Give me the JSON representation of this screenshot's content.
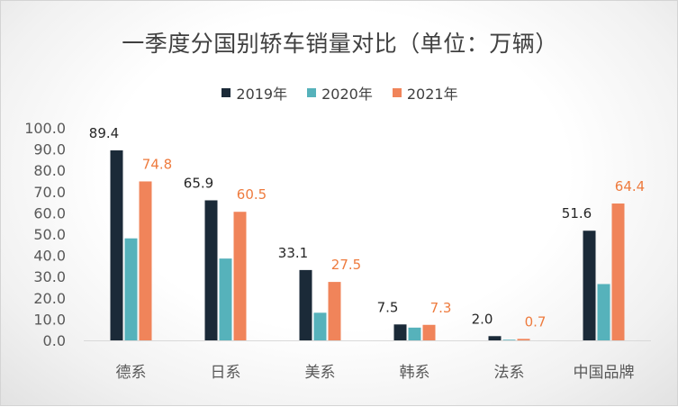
{
  "chart_data": {
    "type": "bar",
    "title": "一季度分国别轿车销量对比（单位：万辆）",
    "categories": [
      "德系",
      "日系",
      "美系",
      "韩系",
      "法系",
      "中国品牌"
    ],
    "series": [
      {
        "name": "2019年",
        "color": "#1b2a38",
        "values": [
          89.4,
          65.9,
          33.1,
          7.5,
          2.0,
          51.6
        ],
        "labels": [
          "89.4",
          "65.9",
          "33.1",
          "7.5",
          "2.0",
          "51.6"
        ],
        "label_color": "#262626"
      },
      {
        "name": "2020年",
        "color": "#56b2bb",
        "values": [
          48.0,
          38.5,
          13.0,
          6.0,
          0.3,
          26.5
        ],
        "labels": null,
        "label_color": null
      },
      {
        "name": "2021年",
        "color": "#f0845a",
        "values": [
          74.8,
          60.5,
          27.5,
          7.3,
          0.7,
          64.4
        ],
        "labels": [
          "74.8",
          "60.5",
          "27.5",
          "7.3",
          "0.7",
          "64.4"
        ],
        "label_color": "#ee7b3e"
      }
    ],
    "ylim": [
      0,
      100
    ],
    "yticks": [
      "0.0",
      "10.0",
      "20.0",
      "30.0",
      "40.0",
      "50.0",
      "60.0",
      "70.0",
      "80.0",
      "90.0",
      "100.0"
    ],
    "grid": false,
    "legend_position": "top"
  }
}
